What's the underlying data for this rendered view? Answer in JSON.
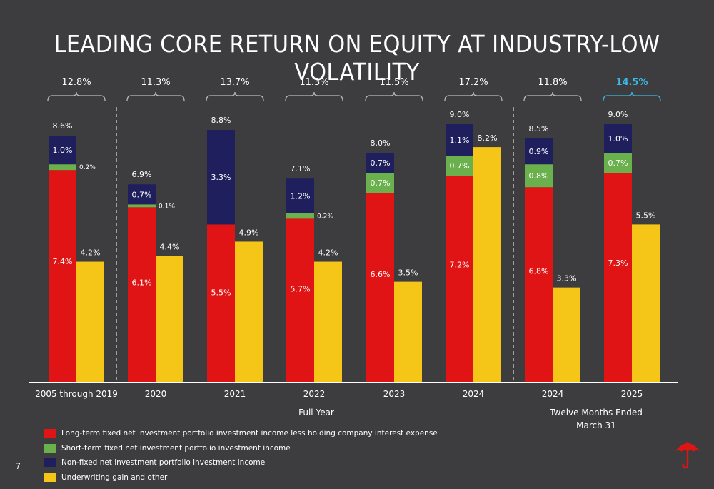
{
  "title": "LEADING CORE RETURN ON EQUITY AT INDUSTRY-LOW VOLATILITY",
  "page_number": "7",
  "group_labels": {
    "full_year": "Full Year",
    "twelve_months": "Twelve Months Ended\nMarch 31"
  },
  "colors": {
    "background": "#3d3d3f",
    "long_term": "#e01414",
    "short_term": "#6ab04c",
    "non_fixed": "#1e1f5c",
    "underwriting": "#f5c518",
    "highlight": "#3bb8e8"
  },
  "legend": [
    {
      "label": "Long-term fixed net investment portfolio investment income less holding company interest expense",
      "color": "#e01414"
    },
    {
      "label": "Short-term fixed net investment portfolio investment income",
      "color": "#6ab04c"
    },
    {
      "label": "Non-fixed net investment portfolio investment income",
      "color": "#1e1f5c"
    },
    {
      "label": "Underwriting gain and other",
      "color": "#f5c518"
    }
  ],
  "logo": "umbrella-logo",
  "chart_data": {
    "type": "bar",
    "stacked": true,
    "unit": "%",
    "categories": [
      "2005 through 2019",
      "2020",
      "2021",
      "2022",
      "2023",
      "2024",
      "2024",
      "2025"
    ],
    "totals": [
      "12.8%",
      "11.3%",
      "13.7%",
      "11.3%",
      "11.5%",
      "17.2%",
      "11.8%",
      "14.5%"
    ],
    "highlighted_total_index": 7,
    "investment_totals": [
      "8.6%",
      "6.9%",
      "8.8%",
      "7.1%",
      "8.0%",
      "9.0%",
      "8.5%",
      "9.0%"
    ],
    "series": [
      {
        "name": "Long-term fixed net investment portfolio investment income less holding company interest expense",
        "stack": "investment",
        "values": [
          7.4,
          6.1,
          5.5,
          5.7,
          6.6,
          7.2,
          6.8,
          7.3
        ],
        "labels": [
          "7.4%",
          "6.1%",
          "5.5%",
          "5.7%",
          "6.6%",
          "7.2%",
          "6.8%",
          "7.3%"
        ]
      },
      {
        "name": "Short-term fixed net investment portfolio investment income",
        "stack": "investment",
        "values": [
          0.2,
          0.1,
          0.0,
          0.2,
          0.7,
          0.7,
          0.8,
          0.7
        ],
        "labels": [
          "0.2%",
          "0.1%",
          "",
          "0.2%",
          "0.7%",
          "0.7%",
          "0.8%",
          "0.7%"
        ]
      },
      {
        "name": "Non-fixed net investment portfolio investment income",
        "stack": "investment",
        "values": [
          1.0,
          0.7,
          3.3,
          1.2,
          0.7,
          1.1,
          0.9,
          1.0
        ],
        "labels": [
          "1.0%",
          "0.7%",
          "3.3%",
          "1.2%",
          "0.7%",
          "1.1%",
          "0.9%",
          "1.0%"
        ]
      },
      {
        "name": "Underwriting gain and other",
        "stack": "underwriting",
        "values": [
          4.2,
          4.4,
          4.9,
          4.2,
          3.5,
          8.2,
          3.3,
          5.5
        ],
        "labels": [
          "4.2%",
          "4.4%",
          "4.9%",
          "4.2%",
          "3.5%",
          "8.2%",
          "3.3%",
          "5.5%"
        ]
      }
    ],
    "ylim": [
      0,
      9.0
    ]
  }
}
